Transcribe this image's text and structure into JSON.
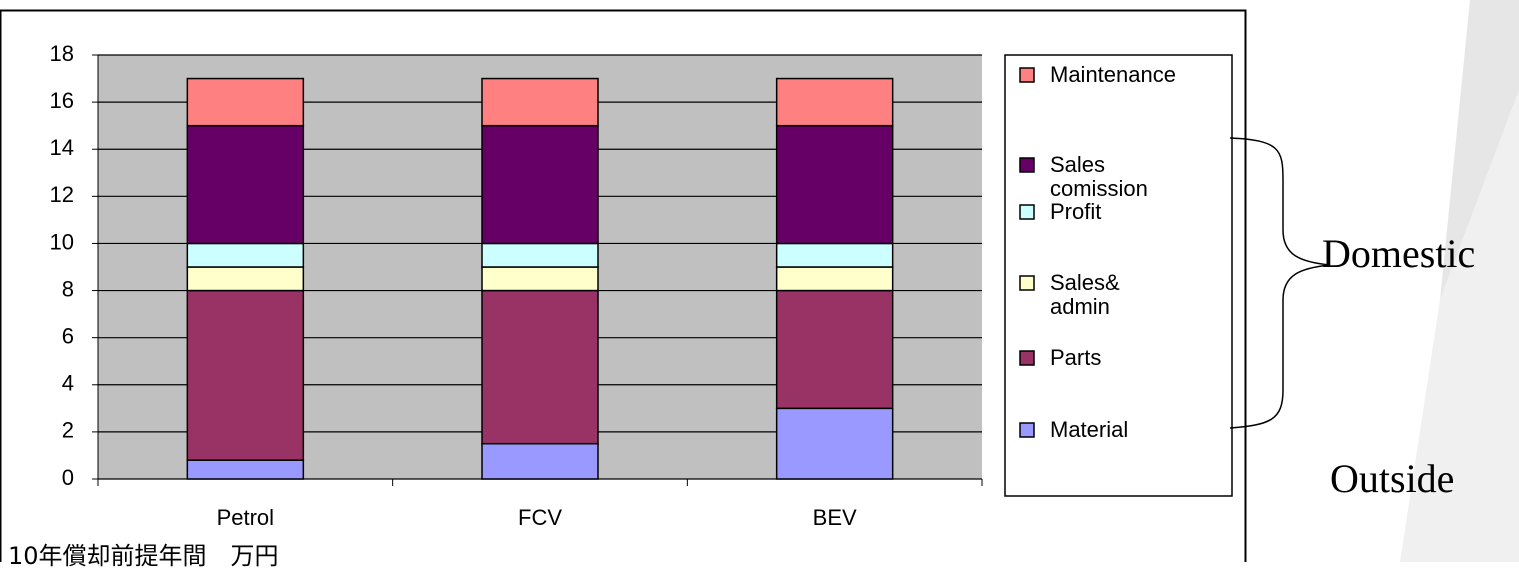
{
  "chart_data": {
    "type": "bar",
    "stacked": true,
    "categories": [
      "Petrol",
      "FCV",
      "BEV"
    ],
    "series": [
      {
        "name": "Material",
        "color": "#9999ff",
        "values": [
          0.8,
          1.5,
          3
        ]
      },
      {
        "name": "Parts",
        "color": "#993366",
        "values": [
          7.2,
          6.5,
          5
        ]
      },
      {
        "name": "Sales&\nadmin",
        "color": "#ffffcc",
        "values": [
          1,
          1,
          1
        ]
      },
      {
        "name": "Profit",
        "color": "#ccffff",
        "values": [
          1,
          1,
          1
        ]
      },
      {
        "name": "Sales\ncomission",
        "color": "#660066",
        "values": [
          5,
          5,
          5
        ]
      },
      {
        "name": "Maintenance",
        "color": "#ff8080",
        "values": [
          2,
          2,
          2
        ]
      }
    ],
    "ylim": [
      0,
      18
    ],
    "yticks": [
      0,
      2,
      4,
      6,
      8,
      10,
      12,
      14,
      16,
      18
    ],
    "grid": true,
    "legend": "right",
    "note": "10年償却前提年間　万円",
    "annotations": [
      "Domestic",
      "Outside"
    ]
  }
}
